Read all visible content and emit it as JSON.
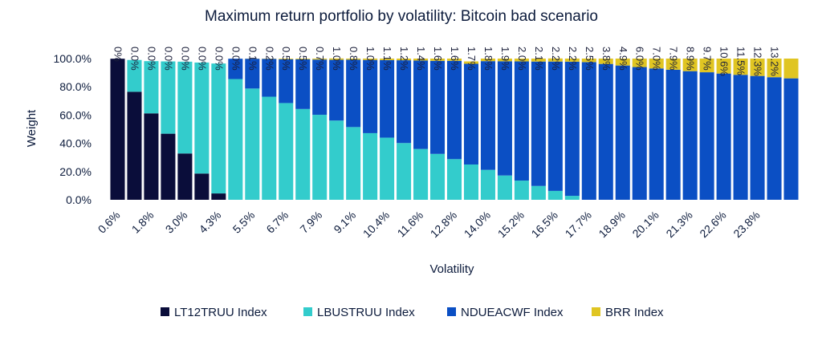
{
  "chart_data": {
    "type": "bar",
    "stacked": true,
    "title": "Maximum return portfolio by volatility: Bitcoin bad scenario",
    "xlabel": "Volatility",
    "ylabel": "Weight",
    "ylim": [
      0,
      100
    ],
    "y_ticks": [
      "0.0%",
      "20.0%",
      "40.0%",
      "60.0%",
      "80.0%",
      "100.0%"
    ],
    "x_tick_labels": [
      "0.6%",
      "1.8%",
      "3.0%",
      "4.3%",
      "5.5%",
      "6.7%",
      "7.9%",
      "9.1%",
      "10.4%",
      "11.6%",
      "12.8%",
      "14.0%",
      "15.2%",
      "16.5%",
      "17.7%",
      "18.9%",
      "20.1%",
      "21.3%",
      "22.6%",
      "23.8%"
    ],
    "legend_position": "bottom",
    "series": [
      {
        "name": "LT12TRUU Index",
        "color": "#0a0d3a",
        "values": [
          99.9,
          76.5,
          61.2,
          46.8,
          32.8,
          18.6,
          4.5,
          0,
          0,
          0,
          0,
          0,
          0,
          0,
          0,
          0,
          0,
          0,
          0,
          0,
          0,
          0,
          0,
          0,
          0,
          0,
          0,
          0,
          0,
          0,
          0,
          0,
          0,
          0,
          0,
          0,
          0,
          0,
          0,
          0,
          0
        ]
      },
      {
        "name": "LBUSTRUU Index",
        "color": "#33cccc",
        "values": [
          0,
          22.5,
          37.0,
          51.2,
          65.0,
          78.6,
          92.0,
          85.5,
          78.8,
          73.0,
          68.5,
          64.3,
          60.2,
          56.1,
          51.5,
          47.2,
          44.0,
          40.2,
          36.0,
          32.5,
          28.8,
          25.0,
          21.2,
          17.2,
          13.6,
          9.8,
          6.3,
          2.8,
          0,
          0,
          0,
          0,
          0,
          0,
          0,
          0,
          0,
          0,
          0,
          0,
          0
        ]
      },
      {
        "name": "NDUEACWF Index",
        "color": "#0b4fc4",
        "values": [
          0,
          0,
          0,
          0,
          0,
          0,
          0,
          14.4,
          21.1,
          26.8,
          31.0,
          35.2,
          39.1,
          43.0,
          47.7,
          51.8,
          54.9,
          58.6,
          62.6,
          65.9,
          69.6,
          71.3,
          77.0,
          80.9,
          84.4,
          88.1,
          91.6,
          95.0,
          97.5,
          96.2,
          95.1,
          94.0,
          93.0,
          92.1,
          91.1,
          90.3,
          89.4,
          88.5,
          87.7,
          86.8,
          86.0
        ]
      },
      {
        "name": "BRR Index",
        "color": "#e0c522",
        "values": [
          0,
          0,
          0,
          0,
          0,
          0,
          0,
          0,
          0.1,
          0.2,
          0.5,
          0.5,
          0.7,
          1.0,
          0.8,
          1.0,
          1.1,
          1.2,
          1.4,
          1.6,
          1.6,
          1.7,
          1.8,
          1.9,
          2.0,
          2.1,
          2.2,
          2.2,
          2.5,
          3.8,
          4.9,
          6.0,
          7.0,
          7.9,
          8.9,
          9.7,
          10.6,
          11.5,
          12.3,
          13.2,
          14.0
        ]
      }
    ],
    "bar_labels": [
      "0%",
      "0.0%",
      "0.0%",
      "0.0%",
      "0.0%",
      "0.0%",
      "0.0%",
      "0.0%",
      "0.1%",
      "0.2%",
      "0.5%",
      "0.5%",
      "0.7%",
      "1.0%",
      "0.8%",
      "1.0%",
      "1.1%",
      "1.2%",
      "1.4%",
      "1.6%",
      "1.6%",
      "1.7%",
      "1.8%",
      "1.9%",
      "2.0%",
      "2.1%",
      "2.2%",
      "2.2%",
      "2.5%",
      "3.8%",
      "4.9%",
      "6.0%",
      "7.0%",
      "7.9%",
      "8.9%",
      "9.7%",
      "10.6%",
      "11.5%",
      "12.3%",
      "13.2%",
      ""
    ]
  }
}
